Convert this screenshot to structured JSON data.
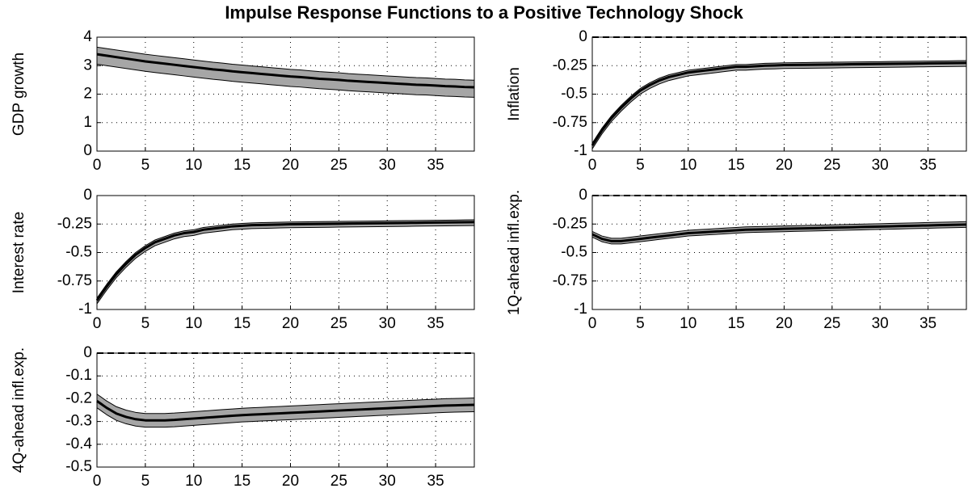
{
  "title": "Impulse Response Functions to a Positive Technology Shock",
  "chart_data": [
    {
      "type": "line",
      "ylabel": "GDP growth",
      "x": [
        0,
        1,
        2,
        3,
        4,
        5,
        6,
        7,
        8,
        9,
        10,
        11,
        12,
        13,
        14,
        15,
        16,
        17,
        18,
        19,
        20,
        21,
        22,
        23,
        24,
        25,
        26,
        27,
        28,
        29,
        30,
        31,
        32,
        33,
        34,
        35,
        36,
        37,
        38,
        39
      ],
      "values": [
        3.4,
        3.35,
        3.3,
        3.25,
        3.2,
        3.15,
        3.11,
        3.07,
        3.03,
        2.99,
        2.95,
        2.91,
        2.87,
        2.84,
        2.8,
        2.77,
        2.74,
        2.71,
        2.68,
        2.65,
        2.62,
        2.6,
        2.57,
        2.54,
        2.52,
        2.5,
        2.47,
        2.45,
        2.43,
        2.41,
        2.39,
        2.37,
        2.35,
        2.33,
        2.32,
        2.3,
        2.28,
        2.27,
        2.25,
        2.24
      ],
      "lower": [
        3.05,
        3.0,
        2.95,
        2.9,
        2.85,
        2.8,
        2.76,
        2.72,
        2.68,
        2.64,
        2.6,
        2.56,
        2.52,
        2.49,
        2.45,
        2.42,
        2.39,
        2.36,
        2.33,
        2.3,
        2.27,
        2.25,
        2.22,
        2.19,
        2.17,
        2.15,
        2.12,
        2.1,
        2.08,
        2.06,
        2.04,
        2.02,
        2.0,
        1.98,
        1.97,
        1.95,
        1.93,
        1.92,
        1.9,
        1.89
      ],
      "upper": [
        3.65,
        3.6,
        3.55,
        3.5,
        3.45,
        3.4,
        3.36,
        3.32,
        3.28,
        3.24,
        3.2,
        3.16,
        3.12,
        3.09,
        3.05,
        3.02,
        2.99,
        2.96,
        2.93,
        2.9,
        2.87,
        2.85,
        2.82,
        2.79,
        2.77,
        2.75,
        2.72,
        2.7,
        2.68,
        2.66,
        2.64,
        2.62,
        2.6,
        2.58,
        2.57,
        2.55,
        2.53,
        2.52,
        2.5,
        2.49
      ],
      "color": "#000000",
      "band_color": "#a6a6a6",
      "xlim": [
        0,
        39
      ],
      "ylim": [
        0,
        4
      ],
      "xticks": [
        0,
        5,
        10,
        15,
        20,
        25,
        30,
        35
      ],
      "yticks": [
        0,
        1,
        2,
        3,
        4
      ],
      "grid": true,
      "ref_line": false
    },
    {
      "type": "line",
      "ylabel": "Inflation",
      "x": [
        0,
        1,
        2,
        3,
        4,
        5,
        6,
        7,
        8,
        9,
        10,
        11,
        12,
        13,
        14,
        15,
        16,
        17,
        18,
        19,
        20,
        21,
        22,
        23,
        24,
        25,
        26,
        27,
        28,
        29,
        30,
        31,
        32,
        33,
        34,
        35,
        36,
        37,
        38,
        39
      ],
      "values": [
        -0.95,
        -0.82,
        -0.71,
        -0.62,
        -0.54,
        -0.47,
        -0.42,
        -0.38,
        -0.35,
        -0.33,
        -0.31,
        -0.3,
        -0.29,
        -0.28,
        -0.27,
        -0.26,
        -0.26,
        -0.255,
        -0.25,
        -0.248,
        -0.245,
        -0.244,
        -0.243,
        -0.242,
        -0.241,
        -0.24,
        -0.239,
        -0.238,
        -0.237,
        -0.236,
        -0.235,
        -0.234,
        -0.233,
        -0.232,
        -0.231,
        -0.23,
        -0.229,
        -0.228,
        -0.227,
        -0.226
      ],
      "lower": [
        -0.98,
        -0.85,
        -0.74,
        -0.65,
        -0.57,
        -0.5,
        -0.45,
        -0.41,
        -0.38,
        -0.36,
        -0.34,
        -0.33,
        -0.32,
        -0.31,
        -0.3,
        -0.29,
        -0.29,
        -0.285,
        -0.28,
        -0.278,
        -0.275,
        -0.274,
        -0.273,
        -0.272,
        -0.271,
        -0.27,
        -0.269,
        -0.268,
        -0.267,
        -0.266,
        -0.265,
        -0.264,
        -0.263,
        -0.262,
        -0.261,
        -0.26,
        -0.259,
        -0.258,
        -0.257,
        -0.256
      ],
      "upper": [
        -0.93,
        -0.8,
        -0.69,
        -0.6,
        -0.52,
        -0.45,
        -0.4,
        -0.36,
        -0.33,
        -0.31,
        -0.29,
        -0.28,
        -0.27,
        -0.26,
        -0.25,
        -0.24,
        -0.24,
        -0.235,
        -0.23,
        -0.228,
        -0.225,
        -0.224,
        -0.223,
        -0.222,
        -0.221,
        -0.22,
        -0.219,
        -0.218,
        -0.217,
        -0.216,
        -0.215,
        -0.214,
        -0.213,
        -0.212,
        -0.211,
        -0.21,
        -0.209,
        -0.208,
        -0.207,
        -0.206
      ],
      "color": "#000000",
      "band_color": "#a6a6a6",
      "xlim": [
        0,
        39
      ],
      "ylim": [
        -1,
        0
      ],
      "xticks": [
        0,
        5,
        10,
        15,
        20,
        25,
        30,
        35
      ],
      "yticks": [
        -1,
        -0.75,
        -0.5,
        -0.25,
        0
      ],
      "grid": true,
      "ref_line": true
    },
    {
      "type": "line",
      "ylabel": "Interest rate",
      "x": [
        0,
        1,
        2,
        3,
        4,
        5,
        6,
        7,
        8,
        9,
        10,
        11,
        12,
        13,
        14,
        15,
        16,
        17,
        18,
        19,
        20,
        21,
        22,
        23,
        24,
        25,
        26,
        27,
        28,
        29,
        30,
        31,
        32,
        33,
        34,
        35,
        36,
        37,
        38,
        39
      ],
      "values": [
        -0.92,
        -0.8,
        -0.69,
        -0.6,
        -0.52,
        -0.46,
        -0.41,
        -0.38,
        -0.35,
        -0.33,
        -0.32,
        -0.3,
        -0.29,
        -0.28,
        -0.27,
        -0.265,
        -0.26,
        -0.258,
        -0.256,
        -0.254,
        -0.252,
        -0.251,
        -0.25,
        -0.249,
        -0.248,
        -0.247,
        -0.246,
        -0.245,
        -0.244,
        -0.243,
        -0.242,
        -0.241,
        -0.24,
        -0.239,
        -0.238,
        -0.237,
        -0.236,
        -0.235,
        -0.234,
        -0.233
      ],
      "lower": [
        -0.95,
        -0.83,
        -0.72,
        -0.63,
        -0.55,
        -0.49,
        -0.44,
        -0.41,
        -0.38,
        -0.36,
        -0.35,
        -0.33,
        -0.32,
        -0.31,
        -0.3,
        -0.295,
        -0.29,
        -0.288,
        -0.286,
        -0.284,
        -0.282,
        -0.281,
        -0.28,
        -0.279,
        -0.278,
        -0.277,
        -0.276,
        -0.275,
        -0.274,
        -0.273,
        -0.272,
        -0.271,
        -0.27,
        -0.269,
        -0.268,
        -0.267,
        -0.266,
        -0.265,
        -0.264,
        -0.263
      ],
      "upper": [
        -0.9,
        -0.78,
        -0.67,
        -0.58,
        -0.5,
        -0.44,
        -0.39,
        -0.36,
        -0.33,
        -0.31,
        -0.3,
        -0.28,
        -0.27,
        -0.26,
        -0.25,
        -0.245,
        -0.24,
        -0.238,
        -0.236,
        -0.234,
        -0.232,
        -0.231,
        -0.23,
        -0.229,
        -0.228,
        -0.227,
        -0.226,
        -0.225,
        -0.224,
        -0.223,
        -0.222,
        -0.221,
        -0.22,
        -0.219,
        -0.218,
        -0.217,
        -0.216,
        -0.215,
        -0.214,
        -0.213
      ],
      "color": "#000000",
      "band_color": "#a6a6a6",
      "xlim": [
        0,
        39
      ],
      "ylim": [
        -1,
        0
      ],
      "xticks": [
        0,
        5,
        10,
        15,
        20,
        25,
        30,
        35
      ],
      "yticks": [
        -1,
        -0.75,
        -0.5,
        -0.25,
        0
      ],
      "grid": true,
      "ref_line": false
    },
    {
      "type": "line",
      "ylabel": "1Q-ahead infl.exp.",
      "x": [
        0,
        1,
        2,
        3,
        4,
        5,
        6,
        7,
        8,
        9,
        10,
        11,
        12,
        13,
        14,
        15,
        16,
        17,
        18,
        19,
        20,
        21,
        22,
        23,
        24,
        25,
        26,
        27,
        28,
        29,
        30,
        31,
        32,
        33,
        34,
        35,
        36,
        37,
        38,
        39
      ],
      "values": [
        -0.34,
        -0.38,
        -0.4,
        -0.4,
        -0.39,
        -0.38,
        -0.37,
        -0.36,
        -0.35,
        -0.34,
        -0.33,
        -0.325,
        -0.32,
        -0.315,
        -0.31,
        -0.305,
        -0.3,
        -0.298,
        -0.296,
        -0.294,
        -0.292,
        -0.29,
        -0.288,
        -0.286,
        -0.284,
        -0.282,
        -0.28,
        -0.278,
        -0.276,
        -0.274,
        -0.272,
        -0.27,
        -0.268,
        -0.266,
        -0.264,
        -0.262,
        -0.26,
        -0.258,
        -0.256,
        -0.254
      ],
      "lower": [
        -0.365,
        -0.405,
        -0.425,
        -0.425,
        -0.415,
        -0.405,
        -0.395,
        -0.385,
        -0.375,
        -0.365,
        -0.355,
        -0.35,
        -0.345,
        -0.34,
        -0.335,
        -0.33,
        -0.325,
        -0.323,
        -0.321,
        -0.319,
        -0.317,
        -0.315,
        -0.313,
        -0.311,
        -0.309,
        -0.307,
        -0.305,
        -0.303,
        -0.301,
        -0.299,
        -0.297,
        -0.295,
        -0.293,
        -0.291,
        -0.289,
        -0.287,
        -0.285,
        -0.283,
        -0.281,
        -0.279
      ],
      "upper": [
        -0.315,
        -0.355,
        -0.375,
        -0.375,
        -0.365,
        -0.355,
        -0.345,
        -0.335,
        -0.325,
        -0.315,
        -0.305,
        -0.3,
        -0.295,
        -0.29,
        -0.285,
        -0.28,
        -0.275,
        -0.273,
        -0.271,
        -0.269,
        -0.267,
        -0.265,
        -0.263,
        -0.261,
        -0.259,
        -0.257,
        -0.255,
        -0.253,
        -0.251,
        -0.249,
        -0.247,
        -0.245,
        -0.243,
        -0.241,
        -0.239,
        -0.237,
        -0.235,
        -0.233,
        -0.231,
        -0.229
      ],
      "color": "#000000",
      "band_color": "#a6a6a6",
      "xlim": [
        0,
        39
      ],
      "ylim": [
        -1,
        0
      ],
      "xticks": [
        0,
        5,
        10,
        15,
        20,
        25,
        30,
        35
      ],
      "yticks": [
        -1,
        -0.75,
        -0.5,
        -0.25,
        0
      ],
      "grid": true,
      "ref_line": true
    },
    {
      "type": "line",
      "ylabel": "4Q-ahead infl.exp.",
      "x": [
        0,
        1,
        2,
        3,
        4,
        5,
        6,
        7,
        8,
        9,
        10,
        11,
        12,
        13,
        14,
        15,
        16,
        17,
        18,
        19,
        20,
        21,
        22,
        23,
        24,
        25,
        26,
        27,
        28,
        29,
        30,
        31,
        32,
        33,
        34,
        35,
        36,
        37,
        38,
        39
      ],
      "values": [
        -0.21,
        -0.24,
        -0.265,
        -0.28,
        -0.29,
        -0.295,
        -0.295,
        -0.295,
        -0.293,
        -0.29,
        -0.287,
        -0.284,
        -0.281,
        -0.278,
        -0.275,
        -0.272,
        -0.27,
        -0.268,
        -0.266,
        -0.264,
        -0.262,
        -0.26,
        -0.258,
        -0.256,
        -0.254,
        -0.252,
        -0.25,
        -0.248,
        -0.246,
        -0.244,
        -0.242,
        -0.24,
        -0.238,
        -0.236,
        -0.234,
        -0.232,
        -0.23,
        -0.229,
        -0.228,
        -0.227
      ],
      "lower": [
        -0.24,
        -0.27,
        -0.295,
        -0.31,
        -0.32,
        -0.325,
        -0.325,
        -0.325,
        -0.323,
        -0.32,
        -0.317,
        -0.314,
        -0.311,
        -0.308,
        -0.305,
        -0.302,
        -0.3,
        -0.298,
        -0.296,
        -0.294,
        -0.292,
        -0.29,
        -0.288,
        -0.286,
        -0.284,
        -0.282,
        -0.28,
        -0.278,
        -0.276,
        -0.274,
        -0.272,
        -0.27,
        -0.268,
        -0.266,
        -0.264,
        -0.262,
        -0.26,
        -0.259,
        -0.258,
        -0.257
      ],
      "upper": [
        -0.18,
        -0.21,
        -0.235,
        -0.25,
        -0.26,
        -0.265,
        -0.265,
        -0.265,
        -0.263,
        -0.26,
        -0.257,
        -0.254,
        -0.251,
        -0.248,
        -0.245,
        -0.242,
        -0.24,
        -0.238,
        -0.236,
        -0.234,
        -0.232,
        -0.23,
        -0.228,
        -0.226,
        -0.224,
        -0.222,
        -0.22,
        -0.218,
        -0.216,
        -0.214,
        -0.212,
        -0.21,
        -0.208,
        -0.206,
        -0.204,
        -0.202,
        -0.2,
        -0.199,
        -0.198,
        -0.197
      ],
      "color": "#000000",
      "band_color": "#a6a6a6",
      "xlim": [
        0,
        39
      ],
      "ylim": [
        -0.5,
        0
      ],
      "xticks": [
        0,
        5,
        10,
        15,
        20,
        25,
        30,
        35
      ],
      "yticks": [
        -0.5,
        -0.4,
        -0.3,
        -0.2,
        -0.1,
        0
      ],
      "grid": true,
      "ref_line": true
    }
  ]
}
